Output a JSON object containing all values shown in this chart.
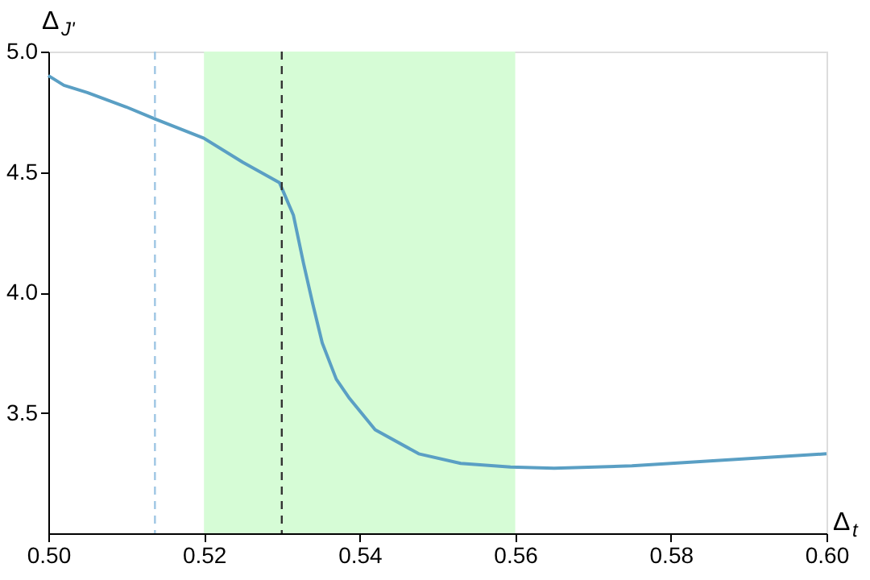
{
  "chart_data": {
    "type": "line",
    "xlabel": "Δ$_{t}$",
    "ylabel": "Δ$_{J'}$",
    "xlim": [
      0.5,
      0.6
    ],
    "ylim": [
      3.0,
      5.0
    ],
    "xticks": [
      {
        "value": 0.5,
        "label": "0.50"
      },
      {
        "value": 0.52,
        "label": "0.52"
      },
      {
        "value": 0.54,
        "label": "0.54"
      },
      {
        "value": 0.56,
        "label": "0.56"
      },
      {
        "value": 0.58,
        "label": "0.58"
      },
      {
        "value": 0.6,
        "label": "0.60"
      }
    ],
    "yticks": [
      {
        "value": 3.5,
        "label": "3.5"
      },
      {
        "value": 4.0,
        "label": "4.0"
      },
      {
        "value": 4.5,
        "label": "4.5"
      },
      {
        "value": 5.0,
        "label": "5.0"
      }
    ],
    "grid": false,
    "marker": "none",
    "line_style": "solid",
    "series": [
      {
        "color": "#5a9fc4",
        "x": [
          0.5,
          0.502,
          0.505,
          0.51,
          0.5137,
          0.52,
          0.525,
          0.5297,
          0.5315,
          0.5328,
          0.534,
          0.5352,
          0.537,
          0.5387,
          0.542,
          0.5476,
          0.553,
          0.5594,
          0.565,
          0.575,
          0.585,
          0.6
        ],
        "values": [
          4.9,
          4.86,
          4.83,
          4.77,
          4.72,
          4.64,
          4.54,
          4.456,
          4.32,
          4.12,
          3.95,
          3.79,
          3.64,
          3.56,
          3.43,
          3.33,
          3.29,
          3.275,
          3.27,
          3.28,
          3.3,
          3.33
        ]
      }
    ],
    "ref_lines": [
      {
        "axis": "x",
        "value": 0.5137,
        "color": "#9ec6e4",
        "line_style": "dashed"
      },
      {
        "axis": "x",
        "value": 0.53,
        "color": "#333333",
        "line_style": "dashed"
      }
    ],
    "bands": [
      {
        "axis": "x",
        "from": 0.52,
        "to": 0.56,
        "color": "#d6fcd6"
      }
    ]
  }
}
